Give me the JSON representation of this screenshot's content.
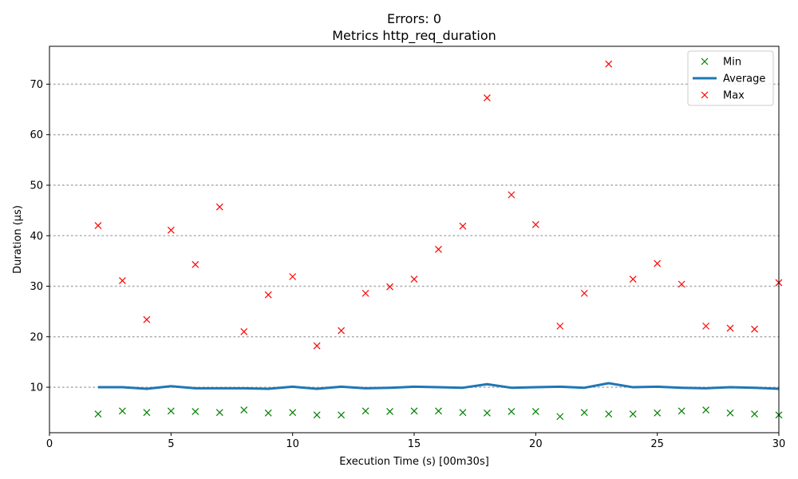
{
  "chart_data": {
    "type": "line",
    "title_line1": "Errors: 0",
    "title_line2": "Metrics http_req_duration",
    "xlabel": "Execution Time (s) [00m30s]",
    "ylabel": "Duration (µs)",
    "xlim": [
      0,
      30
    ],
    "ylim": [
      1,
      77.5
    ],
    "xticks": [
      0,
      5,
      10,
      15,
      20,
      25,
      30
    ],
    "yticks": [
      10,
      20,
      30,
      40,
      50,
      60,
      70
    ],
    "grid": "horizontal dotted",
    "legend_position": "top-right",
    "x": [
      2,
      3,
      4,
      5,
      6,
      7,
      8,
      9,
      10,
      11,
      12,
      13,
      14,
      15,
      16,
      17,
      18,
      19,
      20,
      21,
      22,
      23,
      24,
      25,
      26,
      27,
      28,
      29,
      30
    ],
    "series": [
      {
        "name": "Min",
        "style": "marker-x",
        "color": "#008000",
        "values": [
          4.7,
          5.3,
          5.0,
          5.3,
          5.2,
          5.0,
          5.5,
          4.9,
          5.0,
          4.5,
          4.5,
          5.3,
          5.2,
          5.3,
          5.3,
          5.0,
          4.9,
          5.2,
          5.2,
          4.2,
          5.0,
          4.7,
          4.7,
          4.9,
          5.3,
          5.5,
          4.9,
          4.7,
          4.5
        ]
      },
      {
        "name": "Average",
        "style": "line",
        "color": "#1f77b4",
        "values": [
          10.0,
          10.0,
          9.7,
          10.2,
          9.8,
          9.8,
          9.8,
          9.7,
          10.1,
          9.7,
          10.1,
          9.8,
          9.9,
          10.1,
          10.0,
          9.9,
          10.6,
          9.9,
          10.0,
          10.1,
          9.9,
          10.8,
          10.0,
          10.1,
          9.9,
          9.8,
          10.0,
          9.9,
          9.7
        ]
      },
      {
        "name": "Max",
        "style": "marker-x",
        "color": "#ff0000",
        "values": [
          42.0,
          31.1,
          23.4,
          41.1,
          34.3,
          45.7,
          21.0,
          28.3,
          31.9,
          18.2,
          21.2,
          28.6,
          29.9,
          31.4,
          37.3,
          41.9,
          67.3,
          48.1,
          42.2,
          22.1,
          28.6,
          74.0,
          31.4,
          34.5,
          30.4,
          22.1,
          21.7,
          21.5,
          30.7
        ]
      }
    ]
  }
}
